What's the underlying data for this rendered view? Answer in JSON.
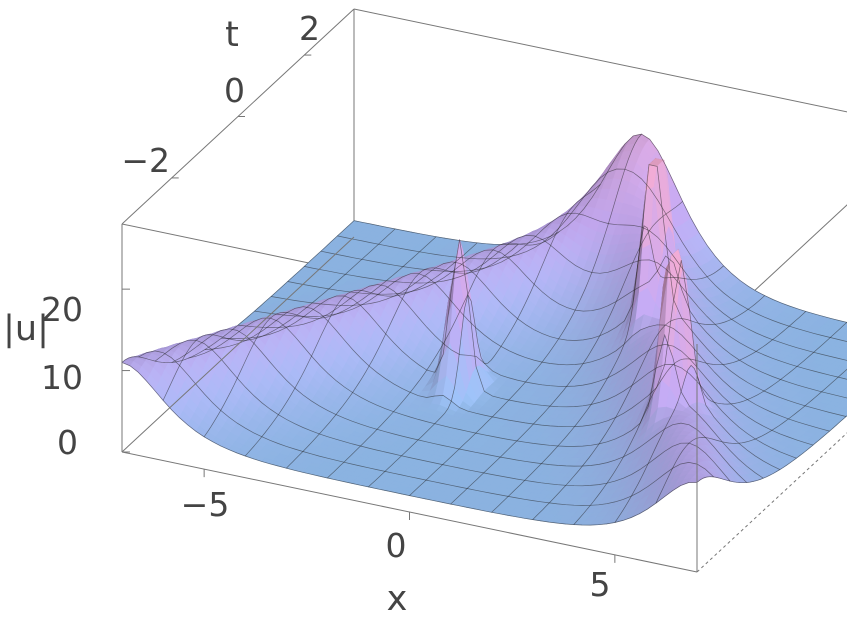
{
  "chart_data": {
    "type": "surface3d",
    "axes": {
      "x": {
        "label": "x",
        "ticks": [
          -5,
          0,
          5
        ],
        "tick_labels": [
          "−5",
          "0",
          "5"
        ],
        "range": [
          -7,
          7
        ]
      },
      "t": {
        "label": "t",
        "ticks": [
          -2,
          0,
          2
        ],
        "tick_labels": [
          "−2",
          "0",
          "2"
        ],
        "range": [
          -3.5,
          3.5
        ]
      },
      "z": {
        "label": "|u|",
        "ticks": [
          0,
          10,
          20
        ],
        "tick_labels": [
          "0",
          "10",
          "20"
        ],
        "range": [
          0,
          28
        ]
      }
    },
    "baseline": 2,
    "ridges": [
      {
        "kind": "soliton-ridge",
        "x_at_t0": -3.5,
        "slope": 1.0,
        "peak": 9
      },
      {
        "kind": "soliton-ridge",
        "x_at_t0": 3.5,
        "slope": -1.0,
        "peak": 9
      }
    ],
    "peaks": [
      {
        "x": -1.2,
        "t": -0.5,
        "height": 18
      },
      {
        "x": 2.3,
        "t": 1.1,
        "height": 26
      },
      {
        "x": 4.6,
        "t": -1.2,
        "height": 24
      }
    ],
    "colors": {
      "low": "#8ec7f5",
      "mid": "#c3a8f0",
      "high": "#f0a9cf",
      "grid": "#222222"
    }
  }
}
